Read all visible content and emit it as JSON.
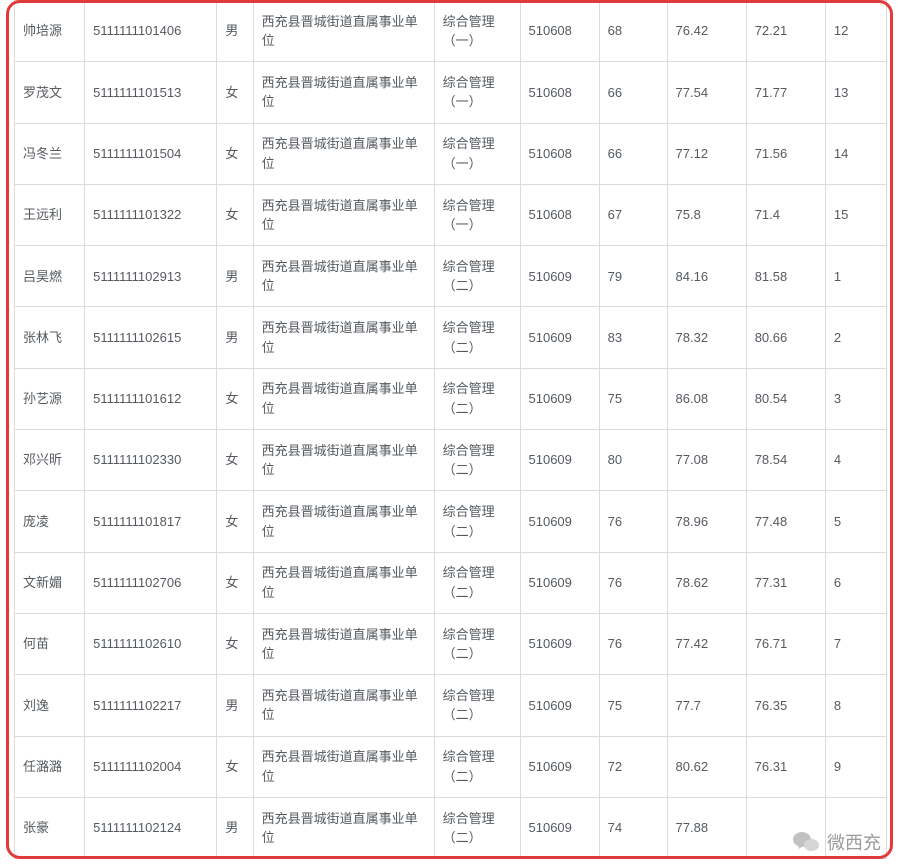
{
  "table": {
    "border_color": "#dcdcdc",
    "text_color": "#555a5f",
    "font_size": 13,
    "frame_border_color": "#e03a3a",
    "background_color": "#ffffff",
    "columns": [
      {
        "key": "name",
        "width": 62
      },
      {
        "key": "id",
        "width": 117
      },
      {
        "key": "gender",
        "width": 32
      },
      {
        "key": "unit",
        "width": 160
      },
      {
        "key": "post",
        "width": 76
      },
      {
        "key": "code",
        "width": 70
      },
      {
        "key": "score1",
        "width": 60
      },
      {
        "key": "score2",
        "width": 70
      },
      {
        "key": "score3",
        "width": 70
      },
      {
        "key": "rank",
        "width": 54
      }
    ],
    "rows": [
      {
        "name": "帅培源",
        "id": "5111111101406",
        "gender": "男",
        "unit": "西充县晋城街道直属事业单位",
        "post": "综合管理（一）",
        "code": "510608",
        "score1": "68",
        "score2": "76.42",
        "score3": "72.21",
        "rank": "12"
      },
      {
        "name": "罗茂文",
        "id": "5111111101513",
        "gender": "女",
        "unit": "西充县晋城街道直属事业单位",
        "post": "综合管理（一）",
        "code": "510608",
        "score1": "66",
        "score2": "77.54",
        "score3": "71.77",
        "rank": "13"
      },
      {
        "name": "冯冬兰",
        "id": "5111111101504",
        "gender": "女",
        "unit": "西充县晋城街道直属事业单位",
        "post": "综合管理（一）",
        "code": "510608",
        "score1": "66",
        "score2": "77.12",
        "score3": "71.56",
        "rank": "14"
      },
      {
        "name": "王远利",
        "id": "5111111101322",
        "gender": "女",
        "unit": "西充县晋城街道直属事业单位",
        "post": "综合管理（一）",
        "code": "510608",
        "score1": "67",
        "score2": "75.8",
        "score3": "71.4",
        "rank": "15"
      },
      {
        "name": "吕昊燃",
        "id": "5111111102913",
        "gender": "男",
        "unit": "西充县晋城街道直属事业单位",
        "post": "综合管理（二）",
        "code": "510609",
        "score1": "79",
        "score2": "84.16",
        "score3": "81.58",
        "rank": "1"
      },
      {
        "name": "张林飞",
        "id": "5111111102615",
        "gender": "男",
        "unit": "西充县晋城街道直属事业单位",
        "post": "综合管理（二）",
        "code": "510609",
        "score1": "83",
        "score2": "78.32",
        "score3": "80.66",
        "rank": "2"
      },
      {
        "name": "孙艺源",
        "id": "5111111101612",
        "gender": "女",
        "unit": "西充县晋城街道直属事业单位",
        "post": "综合管理（二）",
        "code": "510609",
        "score1": "75",
        "score2": "86.08",
        "score3": "80.54",
        "rank": "3"
      },
      {
        "name": "邓兴昕",
        "id": "5111111102330",
        "gender": "女",
        "unit": "西充县晋城街道直属事业单位",
        "post": "综合管理（二）",
        "code": "510609",
        "score1": "80",
        "score2": "77.08",
        "score3": "78.54",
        "rank": "4"
      },
      {
        "name": "庞凌",
        "id": "5111111101817",
        "gender": "女",
        "unit": "西充县晋城街道直属事业单位",
        "post": "综合管理（二）",
        "code": "510609",
        "score1": "76",
        "score2": "78.96",
        "score3": "77.48",
        "rank": "5"
      },
      {
        "name": "文新媚",
        "id": "5111111102706",
        "gender": "女",
        "unit": "西充县晋城街道直属事业单位",
        "post": "综合管理（二）",
        "code": "510609",
        "score1": "76",
        "score2": "78.62",
        "score3": "77.31",
        "rank": "6"
      },
      {
        "name": "何苗",
        "id": "5111111102610",
        "gender": "女",
        "unit": "西充县晋城街道直属事业单位",
        "post": "综合管理（二）",
        "code": "510609",
        "score1": "76",
        "score2": "77.42",
        "score3": "76.71",
        "rank": "7"
      },
      {
        "name": "刘逸",
        "id": "5111111102217",
        "gender": "男",
        "unit": "西充县晋城街道直属事业单位",
        "post": "综合管理（二）",
        "code": "510609",
        "score1": "75",
        "score2": "77.7",
        "score3": "76.35",
        "rank": "8"
      },
      {
        "name": "任潞潞",
        "id": "5111111102004",
        "gender": "女",
        "unit": "西充县晋城街道直属事业单位",
        "post": "综合管理（二）",
        "code": "510609",
        "score1": "72",
        "score2": "80.62",
        "score3": "76.31",
        "rank": "9"
      },
      {
        "name": "张豪",
        "id": "5111111102124",
        "gender": "男",
        "unit": "西充县晋城街道直属事业单位",
        "post": "综合管理（二）",
        "code": "510609",
        "score1": "74",
        "score2": "77.88",
        "score3": "",
        "rank": ""
      }
    ]
  },
  "watermark": {
    "text": "微西充"
  }
}
